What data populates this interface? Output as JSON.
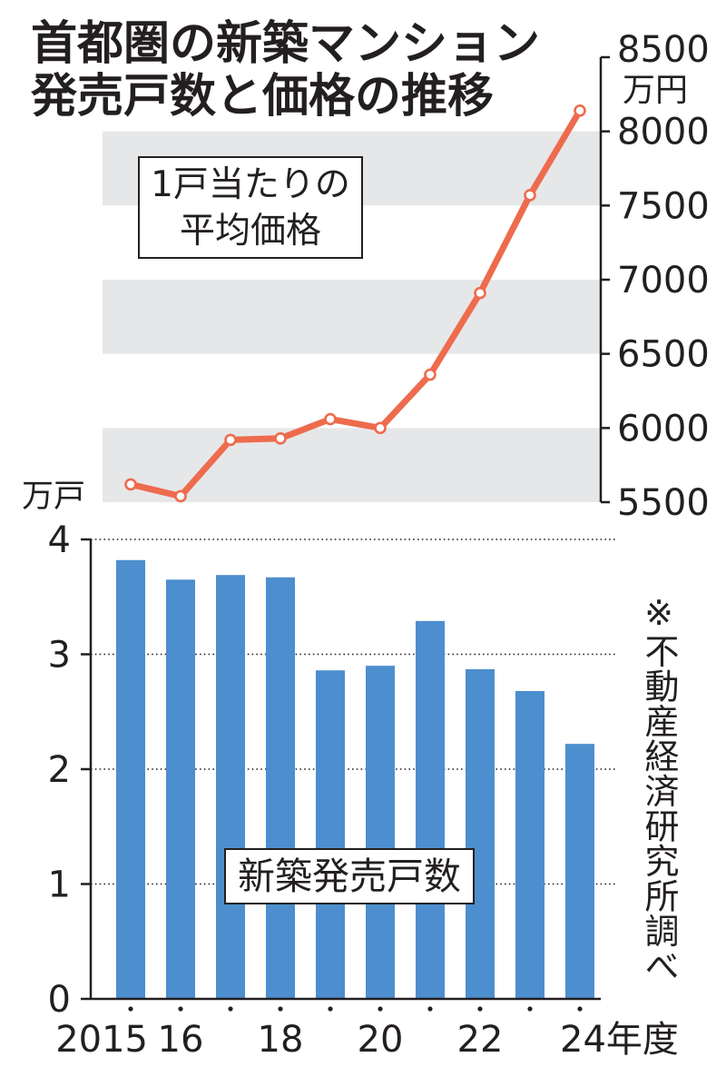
{
  "title": {
    "line1": "首都圏の新築マンション",
    "line2": "発売戸数と価格の推移"
  },
  "note": "※不動産経済研究所調べ",
  "colors": {
    "price_line": "#EE6B4D",
    "units_bar": "#4C8ECE",
    "band": "#E6E7E9",
    "axis": "#231F20"
  },
  "chart_data": [
    {
      "type": "line",
      "x": [
        2015,
        2016,
        2017,
        2018,
        2019,
        2020,
        2021,
        2022,
        2023,
        2024
      ],
      "series": [
        {
          "name_lines": [
            "1戸当たりの",
            "平均価格"
          ],
          "values": [
            5620,
            5540,
            5920,
            5930,
            6060,
            6000,
            6360,
            6910,
            7570,
            8140
          ]
        }
      ],
      "y_axis": {
        "position": "right",
        "unit": "万円",
        "range": [
          5500,
          8500
        ],
        "ticks": [
          5500,
          6000,
          6500,
          7000,
          7500,
          8000,
          8500
        ]
      },
      "bands": true
    },
    {
      "type": "bar",
      "x": [
        2015,
        2016,
        2017,
        2018,
        2019,
        2020,
        2021,
        2022,
        2023,
        2024
      ],
      "series": [
        {
          "name": "新築発売戸数",
          "values": [
            3.82,
            3.65,
            3.69,
            3.67,
            2.86,
            2.9,
            3.29,
            2.87,
            2.68,
            2.22
          ]
        }
      ],
      "y_axis": {
        "position": "left",
        "unit": "万戸",
        "range": [
          0,
          4
        ],
        "ticks": [
          0,
          1,
          2,
          3,
          4
        ]
      },
      "x_axis": {
        "ticks": [
          {
            "x": 2015,
            "label": "2015"
          },
          {
            "x": 2016,
            "label": "16"
          },
          {
            "x": 2018,
            "label": "18"
          },
          {
            "x": 2020,
            "label": "20"
          },
          {
            "x": 2022,
            "label": "22"
          },
          {
            "x": 2024,
            "label": "24年度"
          }
        ]
      },
      "grid": true
    }
  ]
}
